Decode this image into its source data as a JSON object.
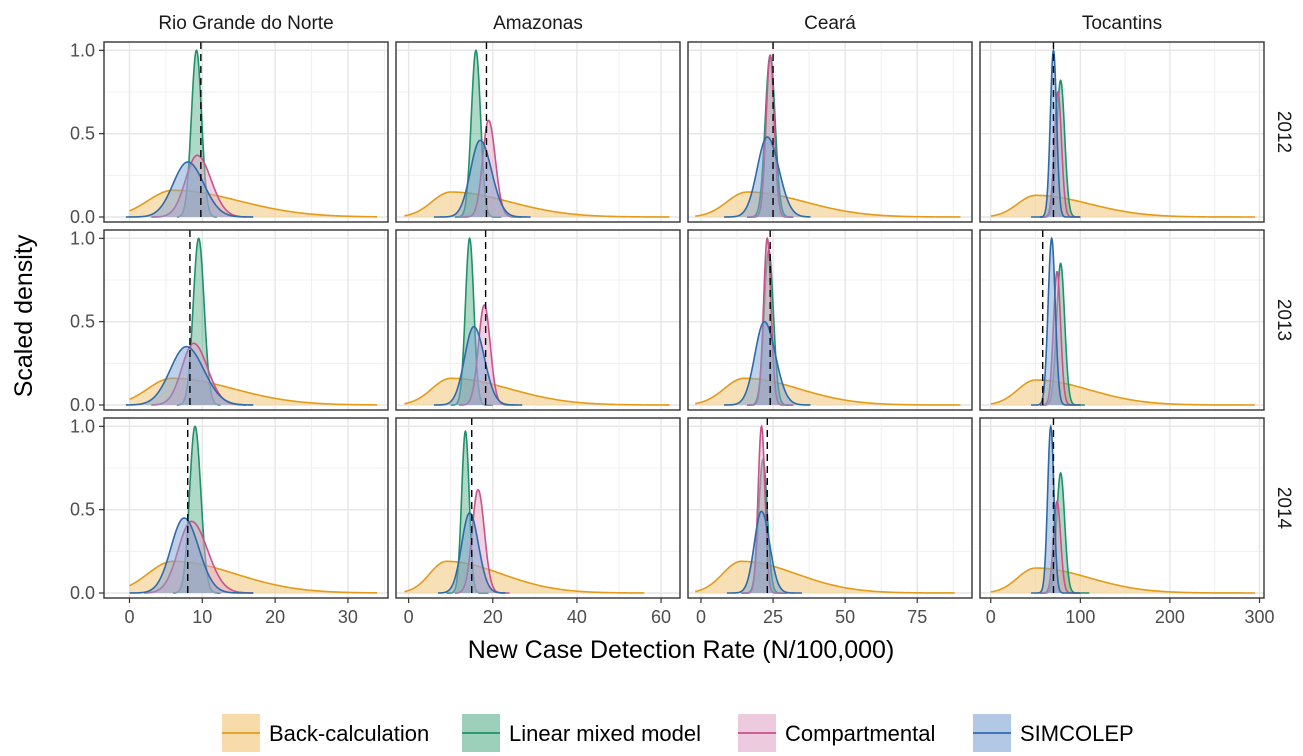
{
  "chart_data": {
    "type": "area",
    "subtype": "faceted density plot",
    "xlabel": "New Case Detection Rate (N/100,000)",
    "ylabel": "Scaled density",
    "columns": [
      "Rio Grande do Norte",
      "Amazonas",
      "Ceará",
      "Tocantins"
    ],
    "rows": [
      "2012",
      "2013",
      "2014"
    ],
    "y_ticks": [
      0.0,
      0.5,
      1.0
    ],
    "y_tick_labels": [
      "0.0",
      "0.5",
      "1.0"
    ],
    "ylim": [
      -0.03,
      1.05
    ],
    "grid": true,
    "legend_position": "bottom",
    "x_axes": [
      {
        "xlim": [
          -3.5,
          35.5
        ],
        "ticks": [
          0,
          10,
          20,
          30
        ]
      },
      {
        "xlim": [
          -3,
          64.5
        ],
        "ticks": [
          0,
          20,
          40,
          60
        ]
      },
      {
        "xlim": [
          -4.5,
          94
        ],
        "ticks": [
          0,
          25,
          50,
          75
        ]
      },
      {
        "xlim": [
          -12,
          305
        ],
        "ticks": [
          0,
          100,
          200,
          300
        ]
      }
    ],
    "series": [
      {
        "name": "Back-calculation",
        "key": "back",
        "line_color": "#e39b1a",
        "fill_color": "#f5cf8f",
        "fill_opacity": 0.65
      },
      {
        "name": "Linear mixed model",
        "key": "lmm",
        "line_color": "#20916a",
        "fill_color": "#4caa82",
        "fill_opacity": 0.45
      },
      {
        "name": "Compartmental",
        "key": "comp",
        "line_color": "#c9528a",
        "fill_color": "#e3a6c8",
        "fill_opacity": 0.5
      },
      {
        "name": "SIMCOLEP",
        "key": "sim",
        "line_color": "#2f6aa8",
        "fill_color": "#7ea4d4",
        "fill_opacity": 0.5
      }
    ],
    "panels": [
      {
        "column": "Rio Grande do Norte",
        "row": "2012",
        "observed_rate": 9.8,
        "curves": {
          "back": {
            "mode": 6,
            "left_width": 3.5,
            "right_width": 9,
            "peak": 0.16,
            "from": 0,
            "to": 34
          },
          "lmm": {
            "mode": 9.2,
            "left_width": 0.7,
            "right_width": 0.7,
            "peak": 1.0,
            "from": 6.5,
            "to": 12
          },
          "comp": {
            "mode": 9.3,
            "left_width": 1.6,
            "right_width": 1.9,
            "peak": 0.37,
            "from": 3,
            "to": 16
          },
          "sim": {
            "mode": 8,
            "left_width": 2.0,
            "right_width": 2.2,
            "peak": 0.33,
            "from": -0.5,
            "to": 17
          }
        }
      },
      {
        "column": "Amazonas",
        "row": "2012",
        "observed_rate": 18.5,
        "curves": {
          "back": {
            "mode": 10,
            "left_width": 4.5,
            "right_width": 14,
            "peak": 0.15,
            "from": -1,
            "to": 62
          },
          "lmm": {
            "mode": 16,
            "left_width": 1.1,
            "right_width": 1.1,
            "peak": 1.0,
            "from": 11,
            "to": 22
          },
          "comp": {
            "mode": 19,
            "left_width": 1.4,
            "right_width": 1.6,
            "peak": 0.58,
            "from": 12,
            "to": 27
          },
          "sim": {
            "mode": 17,
            "left_width": 2.3,
            "right_width": 2.7,
            "peak": 0.46,
            "from": 6,
            "to": 29
          }
        }
      },
      {
        "column": "Ceará",
        "row": "2012",
        "observed_rate": 25,
        "curves": {
          "back": {
            "mode": 16,
            "left_width": 7,
            "right_width": 20,
            "peak": 0.15,
            "from": -2,
            "to": 90
          },
          "lmm": {
            "mode": 24,
            "left_width": 1.7,
            "right_width": 1.7,
            "peak": 0.97,
            "from": 16,
            "to": 32
          },
          "comp": {
            "mode": 24,
            "left_width": 1.4,
            "right_width": 1.4,
            "peak": 0.97,
            "from": 16,
            "to": 32
          },
          "sim": {
            "mode": 23,
            "left_width": 3.5,
            "right_width": 4,
            "peak": 0.48,
            "from": 8,
            "to": 38
          }
        }
      },
      {
        "column": "Tocantins",
        "row": "2012",
        "observed_rate": 70,
        "curves": {
          "back": {
            "mode": 50,
            "left_width": 20,
            "right_width": 60,
            "peak": 0.13,
            "from": 0,
            "to": 295
          },
          "lmm": {
            "mode": 78,
            "left_width": 4.5,
            "right_width": 4.5,
            "peak": 0.82,
            "from": 55,
            "to": 100
          },
          "comp": {
            "mode": 75,
            "left_width": 4,
            "right_width": 4,
            "peak": 0.75,
            "from": 55,
            "to": 100
          },
          "sim": {
            "mode": 70,
            "left_width": 3.5,
            "right_width": 3.5,
            "peak": 1.0,
            "from": 45,
            "to": 100
          }
        }
      },
      {
        "column": "Rio Grande do Norte",
        "row": "2013",
        "observed_rate": 8.3,
        "curves": {
          "back": {
            "mode": 5.8,
            "left_width": 3.3,
            "right_width": 8.5,
            "peak": 0.16,
            "from": 0,
            "to": 34
          },
          "lmm": {
            "mode": 9.5,
            "left_width": 0.75,
            "right_width": 0.75,
            "peak": 1.0,
            "from": 6.5,
            "to": 12.5
          },
          "comp": {
            "mode": 8.8,
            "left_width": 1.6,
            "right_width": 1.9,
            "peak": 0.37,
            "from": 3,
            "to": 16
          },
          "sim": {
            "mode": 7.8,
            "left_width": 2.2,
            "right_width": 2.4,
            "peak": 0.35,
            "from": -0.5,
            "to": 17
          }
        }
      },
      {
        "column": "Amazonas",
        "row": "2013",
        "observed_rate": 18.3,
        "curves": {
          "back": {
            "mode": 10,
            "left_width": 4.5,
            "right_width": 14,
            "peak": 0.16,
            "from": -1,
            "to": 62
          },
          "lmm": {
            "mode": 14.5,
            "left_width": 1.0,
            "right_width": 1.0,
            "peak": 1.0,
            "from": 10,
            "to": 20
          },
          "comp": {
            "mode": 18,
            "left_width": 1.4,
            "right_width": 1.4,
            "peak": 0.6,
            "from": 12,
            "to": 25
          },
          "sim": {
            "mode": 15.5,
            "left_width": 2.2,
            "right_width": 2.5,
            "peak": 0.47,
            "from": 6,
            "to": 27
          }
        }
      },
      {
        "column": "Ceará",
        "row": "2013",
        "observed_rate": 24,
        "curves": {
          "back": {
            "mode": 15,
            "left_width": 7,
            "right_width": 19,
            "peak": 0.16,
            "from": -2,
            "to": 90
          },
          "lmm": {
            "mode": 23.5,
            "left_width": 1.6,
            "right_width": 1.6,
            "peak": 0.93,
            "from": 16,
            "to": 32
          },
          "comp": {
            "mode": 23,
            "left_width": 1.3,
            "right_width": 1.3,
            "peak": 1.0,
            "from": 16,
            "to": 32
          },
          "sim": {
            "mode": 22,
            "left_width": 3.3,
            "right_width": 3.8,
            "peak": 0.5,
            "from": 8,
            "to": 38
          }
        }
      },
      {
        "column": "Tocantins",
        "row": "2013",
        "observed_rate": 58,
        "curves": {
          "back": {
            "mode": 50,
            "left_width": 20,
            "right_width": 60,
            "peak": 0.15,
            "from": 0,
            "to": 295
          },
          "lmm": {
            "mode": 78,
            "left_width": 4.5,
            "right_width": 4.5,
            "peak": 0.85,
            "from": 55,
            "to": 105
          },
          "comp": {
            "mode": 74,
            "left_width": 4,
            "right_width": 4,
            "peak": 0.8,
            "from": 55,
            "to": 100
          },
          "sim": {
            "mode": 68,
            "left_width": 4,
            "right_width": 4,
            "peak": 1.0,
            "from": 45,
            "to": 100
          }
        }
      },
      {
        "column": "Rio Grande do Norte",
        "row": "2014",
        "observed_rate": 8,
        "curves": {
          "back": {
            "mode": 6,
            "left_width": 3.5,
            "right_width": 8.5,
            "peak": 0.19,
            "from": 0,
            "to": 34
          },
          "lmm": {
            "mode": 9,
            "left_width": 0.75,
            "right_width": 0.8,
            "peak": 1.0,
            "from": 6,
            "to": 12.5
          },
          "comp": {
            "mode": 8.5,
            "left_width": 1.8,
            "right_width": 2.2,
            "peak": 0.43,
            "from": 2,
            "to": 17
          },
          "sim": {
            "mode": 7.5,
            "left_width": 1.8,
            "right_width": 2.0,
            "peak": 0.45,
            "from": 0,
            "to": 17
          }
        }
      },
      {
        "column": "Amazonas",
        "row": "2014",
        "observed_rate": 15,
        "curves": {
          "back": {
            "mode": 9,
            "left_width": 4,
            "right_width": 13,
            "peak": 0.19,
            "from": -1,
            "to": 56
          },
          "lmm": {
            "mode": 13.5,
            "left_width": 0.9,
            "right_width": 0.9,
            "peak": 0.97,
            "from": 9,
            "to": 19
          },
          "comp": {
            "mode": 16.5,
            "left_width": 1.4,
            "right_width": 1.5,
            "peak": 0.62,
            "from": 11,
            "to": 24
          },
          "sim": {
            "mode": 14.5,
            "left_width": 1.9,
            "right_width": 2.1,
            "peak": 0.48,
            "from": 7,
            "to": 23
          }
        }
      },
      {
        "column": "Ceará",
        "row": "2014",
        "observed_rate": 23,
        "curves": {
          "back": {
            "mode": 14,
            "left_width": 6.5,
            "right_width": 19,
            "peak": 0.19,
            "from": -2,
            "to": 88
          },
          "lmm": {
            "mode": 21.5,
            "left_width": 1.5,
            "right_width": 1.5,
            "peak": 0.8,
            "from": 14,
            "to": 30
          },
          "comp": {
            "mode": 21,
            "left_width": 1.2,
            "right_width": 1.2,
            "peak": 1.0,
            "from": 14,
            "to": 30
          },
          "sim": {
            "mode": 21,
            "left_width": 2.5,
            "right_width": 2.8,
            "peak": 0.49,
            "from": 9,
            "to": 35
          }
        }
      },
      {
        "column": "Tocantins",
        "row": "2014",
        "observed_rate": 70,
        "curves": {
          "back": {
            "mode": 50,
            "left_width": 20,
            "right_width": 60,
            "peak": 0.15,
            "from": 0,
            "to": 295
          },
          "lmm": {
            "mode": 78,
            "left_width": 4.5,
            "right_width": 4.5,
            "peak": 0.72,
            "from": 55,
            "to": 110
          },
          "comp": {
            "mode": 74,
            "left_width": 4,
            "right_width": 4,
            "peak": 0.55,
            "from": 55,
            "to": 100
          },
          "sim": {
            "mode": 67,
            "left_width": 3.5,
            "right_width": 3.5,
            "peak": 1.0,
            "from": 45,
            "to": 100
          }
        }
      }
    ]
  }
}
